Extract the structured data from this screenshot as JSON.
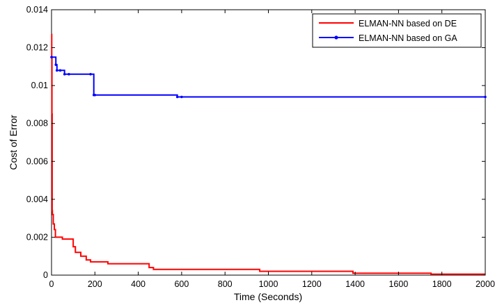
{
  "chart_data": {
    "type": "line",
    "xlabel": "Time (Seconds)",
    "ylabel": "Cost of Error",
    "xlim": [
      0,
      2000
    ],
    "ylim": [
      0,
      0.014
    ],
    "x_ticks": [
      0,
      200,
      400,
      600,
      800,
      1000,
      1200,
      1400,
      1600,
      1800,
      2000
    ],
    "x_tick_labels": [
      "0",
      "200",
      "400",
      "600",
      "800",
      "1000",
      "1200",
      "1400",
      "1600",
      "1800",
      "2000"
    ],
    "y_ticks": [
      0,
      0.002,
      0.004,
      0.006,
      0.008,
      0.01,
      0.012,
      0.014
    ],
    "y_tick_labels": [
      "0",
      "0.002",
      "0.004",
      "0.006",
      "0.008",
      "0.01",
      "0.012",
      "0.014"
    ],
    "grid": false,
    "legend_position": "top-right",
    "series": [
      {
        "name": "ELMAN-NN based on DE",
        "color": "#ff0000",
        "marker": "none",
        "step": true,
        "x": [
          0,
          1,
          2,
          3,
          4,
          8,
          13,
          18,
          30,
          50,
          70,
          100,
          110,
          135,
          160,
          180,
          200,
          260,
          400,
          450,
          470,
          580,
          960,
          1020,
          1390,
          1750,
          2000
        ],
        "y": [
          0.0127,
          0.0115,
          0.0085,
          0.0034,
          0.0032,
          0.0027,
          0.0024,
          0.002,
          0.002,
          0.0019,
          0.0019,
          0.0015,
          0.0012,
          0.001,
          0.0008,
          0.0007,
          0.0007,
          0.0006,
          0.0006,
          0.0004,
          0.0003,
          0.0003,
          0.0002,
          0.0002,
          0.0001,
          5e-05,
          5e-05
        ]
      },
      {
        "name": "ELMAN-NN based on GA",
        "color": "#0000ff",
        "marker": "dot",
        "step": true,
        "x": [
          0,
          20,
          25,
          40,
          60,
          80,
          180,
          195,
          200,
          580,
          600,
          2000
        ],
        "y": [
          0.0115,
          0.0111,
          0.0108,
          0.0108,
          0.0106,
          0.0106,
          0.0106,
          0.0095,
          0.0095,
          0.0094,
          0.0094,
          0.0094
        ]
      }
    ]
  }
}
